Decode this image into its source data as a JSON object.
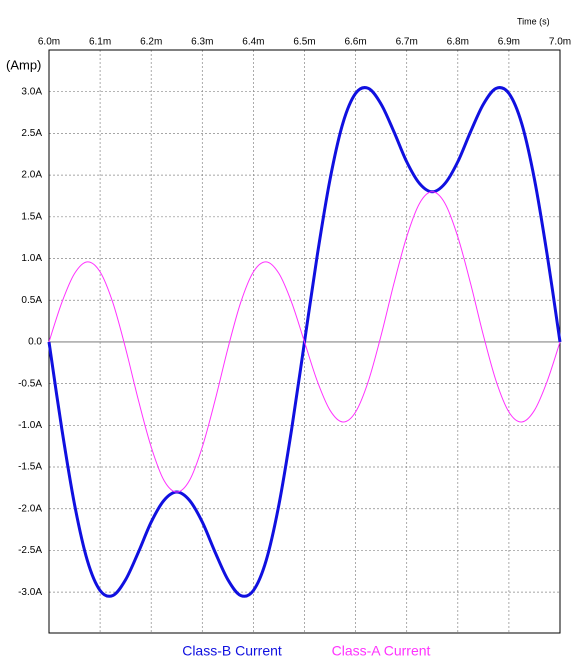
{
  "chart_data": {
    "type": "line",
    "x_label": "Time  (s)",
    "y_label": "(Amp)",
    "x": [
      0.006,
      0.006025,
      0.00605,
      0.006075,
      0.0061,
      0.006125,
      0.00615,
      0.006175,
      0.0062,
      0.006225,
      0.00625,
      0.006275,
      0.0063,
      0.006325,
      0.00635,
      0.006375,
      0.0064,
      0.006425,
      0.00645,
      0.006475,
      0.0065,
      0.006525,
      0.00655,
      0.006575,
      0.0066,
      0.006625,
      0.00665,
      0.006675,
      0.0067,
      0.006725,
      0.00675,
      0.006775,
      0.0068,
      0.006825,
      0.00685,
      0.006875,
      0.0069,
      0.006925,
      0.00695,
      0.006975,
      0.007
    ],
    "series": [
      {
        "name": "Class-B Current",
        "color": "#1010e0",
        "width": 3,
        "values": [
          0,
          -1.04,
          -1.95,
          -2.62,
          -2.98,
          -3.04,
          -2.85,
          -2.52,
          -2.16,
          -1.9,
          -1.8,
          -1.9,
          -2.16,
          -2.52,
          -2.85,
          -3.04,
          -2.98,
          -2.62,
          -1.95,
          -1.04,
          0,
          1.04,
          1.95,
          2.62,
          2.98,
          3.04,
          2.85,
          2.52,
          2.16,
          1.9,
          1.8,
          1.9,
          2.16,
          2.52,
          2.85,
          3.04,
          2.98,
          2.62,
          1.95,
          1.04,
          0
        ]
      },
      {
        "name": "Class-A Current",
        "color": "#ff33ff",
        "width": 1,
        "values": [
          0,
          0.47,
          0.82,
          0.96,
          0.84,
          0.47,
          -0.08,
          -0.7,
          -1.26,
          -1.66,
          -1.8,
          -1.66,
          -1.26,
          -0.7,
          -0.08,
          0.47,
          0.84,
          0.96,
          0.82,
          0.47,
          0,
          -0.47,
          -0.82,
          -0.96,
          -0.84,
          -0.47,
          0.08,
          0.7,
          1.26,
          1.66,
          1.8,
          1.66,
          1.26,
          0.7,
          0.08,
          -0.47,
          -0.84,
          -0.96,
          -0.82,
          -0.47,
          0
        ]
      }
    ],
    "xlim": [
      0.006,
      0.007
    ],
    "xticks": [
      {
        "value": 0.006,
        "label": "6.0m"
      },
      {
        "value": 0.0061,
        "label": "6.1m"
      },
      {
        "value": 0.0062,
        "label": "6.2m"
      },
      {
        "value": 0.0063,
        "label": "6.3m"
      },
      {
        "value": 0.0064,
        "label": "6.4m"
      },
      {
        "value": 0.0065,
        "label": "6.5m"
      },
      {
        "value": 0.0066,
        "label": "6.6m"
      },
      {
        "value": 0.0067,
        "label": "6.7m"
      },
      {
        "value": 0.0068,
        "label": "6.8m"
      },
      {
        "value": 0.0069,
        "label": "6.9m"
      },
      {
        "value": 0.007,
        "label": "7.0m"
      }
    ],
    "ylim": [
      -3.49,
      3.5
    ],
    "yticks": [
      {
        "value": 3,
        "label": "3.0A"
      },
      {
        "value": 2.5,
        "label": "2.5A"
      },
      {
        "value": 2,
        "label": "2.0A"
      },
      {
        "value": 1.5,
        "label": "1.5A"
      },
      {
        "value": 1,
        "label": "1.0A"
      },
      {
        "value": 0.5,
        "label": "0.5A"
      },
      {
        "value": 0,
        "label": "0.0"
      },
      {
        "value": -0.5,
        "label": "-0.5A"
      },
      {
        "value": -1,
        "label": "-1.0A"
      },
      {
        "value": -1.5,
        "label": "-1.5A"
      },
      {
        "value": -2,
        "label": "-2.0A"
      },
      {
        "value": -2.5,
        "label": "-2.5A"
      },
      {
        "value": -3,
        "label": "-3.0A"
      }
    ],
    "grid": true
  }
}
